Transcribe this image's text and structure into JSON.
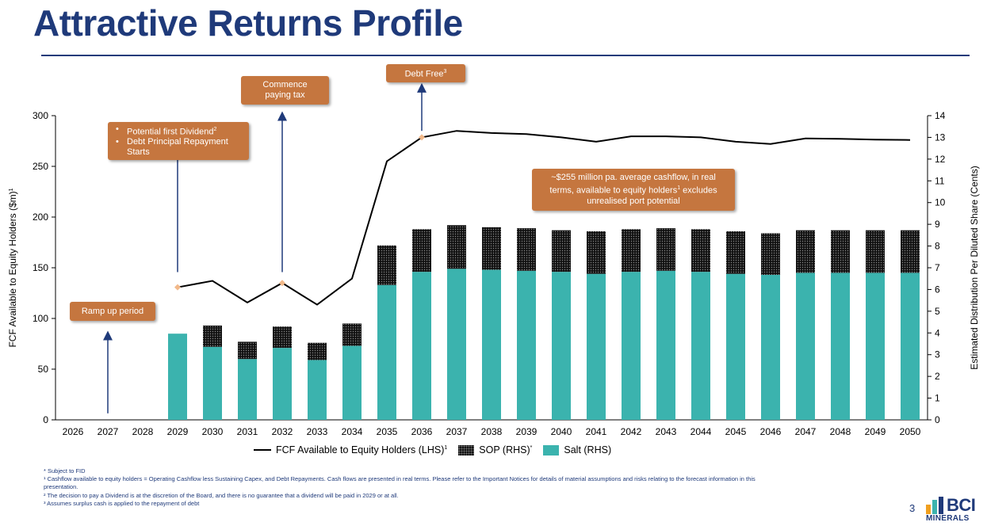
{
  "page": {
    "title": "Attractive Returns Profile",
    "page_number": "3",
    "logo_text": "BCI",
    "logo_subtext": "MINERALS"
  },
  "callouts": {
    "ramp_up": "Ramp up period",
    "dividend_1": "Potential first Dividend",
    "dividend_1_sup": "2",
    "dividend_2": "Debt Principal Repayment Starts",
    "tax": "Commence paying tax",
    "debt_free": "Debt Free",
    "debt_free_sup": "3",
    "cashflow_a": "~$255 million pa. average cashflow, in real terms, available to equity holders",
    "cashflow_sup": "1",
    "cashflow_b": " excludes unrealised port potential"
  },
  "legend": {
    "fcf": "FCF Available to Equity Holders (LHS)",
    "fcf_sup": "1",
    "sop": "SOP (RHS)",
    "sop_sup": "*",
    "salt": "Salt (RHS)"
  },
  "footnotes": {
    "star": "* Subject to FID",
    "one": "¹ Cashflow available to equity holders = Operating Cashflow less Sustaining Capex, and Debt Repayments. Cash flows are presented in real terms. Please refer to the Important Notices for details of material assumptions and risks relating to the forecast information in this",
    "one_b": "presentation.",
    "two": "² The decision to pay a Dividend is at the discretion of the Board, and there is no guarantee that a dividend will be paid in 2029 or at all.",
    "three": "³ Assumes surplus cash is applied to the repayment of debt"
  },
  "colors": {
    "salt": "#3bb3ae",
    "sop": "#111111",
    "line": "#000000",
    "marker": "#f2b98a",
    "title": "#1f3a7a",
    "callout": "#c5763f"
  },
  "chart_data": {
    "type": "bar",
    "categories": [
      "2026",
      "2027",
      "2028",
      "2029",
      "2030",
      "2031",
      "2032",
      "2033",
      "2034",
      "2035",
      "2036",
      "2037",
      "2038",
      "2039",
      "2040",
      "2041",
      "2042",
      "2043",
      "2044",
      "2045",
      "2046",
      "2047",
      "2048",
      "2049",
      "2050"
    ],
    "ylabel_left": "FCF Available to Equity Holders ($m)",
    "ylabel_left_sup": "1",
    "ylabel_right": "Estimated Distribution Per Diluted Share (Cents)",
    "ylim_left": [
      0,
      300
    ],
    "ylim_right": [
      0,
      14
    ],
    "left_ticks": [
      0,
      50,
      100,
      150,
      200,
      250,
      300
    ],
    "right_ticks": [
      0,
      1,
      2,
      3,
      4,
      5,
      6,
      7,
      8,
      9,
      10,
      11,
      12,
      13,
      14
    ],
    "series": [
      {
        "name": "Salt (RHS)",
        "kind": "stacked-bar",
        "values": [
          0,
          0,
          0,
          85,
          72,
          60,
          71,
          59,
          73,
          133,
          146,
          149,
          148,
          147,
          146,
          144,
          146,
          147,
          146,
          144,
          143,
          145,
          145,
          145,
          145
        ]
      },
      {
        "name": "SOP (RHS)",
        "kind": "stacked-bar",
        "values": [
          0,
          0,
          0,
          0,
          21,
          17,
          21,
          17,
          22,
          39,
          42,
          43,
          42,
          42,
          41,
          42,
          42,
          42,
          42,
          42,
          41,
          42,
          42,
          42,
          42
        ]
      },
      {
        "name": "FCF Available to Equity Holders (LHS)",
        "kind": "line",
        "values": [
          null,
          null,
          null,
          6.1,
          6.4,
          5.4,
          6.3,
          5.3,
          6.5,
          11.9,
          13.0,
          13.3,
          13.2,
          13.15,
          13.0,
          12.8,
          13.05,
          13.05,
          13.0,
          12.8,
          12.7,
          12.95,
          12.93,
          12.9,
          12.88
        ]
      }
    ],
    "markers": [
      {
        "year": "2029",
        "value": 6.1
      },
      {
        "year": "2032",
        "value": 6.3
      },
      {
        "year": "2036",
        "value": 13.0
      }
    ],
    "arrows": [
      {
        "year": "2027",
        "from": 0.3,
        "to": 4.1
      },
      {
        "year": "2029",
        "from": 6.8,
        "to": 12.7
      },
      {
        "year": "2032",
        "from": 6.8,
        "to": 14.2
      },
      {
        "year": "2036",
        "from": 13.3,
        "to": 15.5
      }
    ]
  }
}
